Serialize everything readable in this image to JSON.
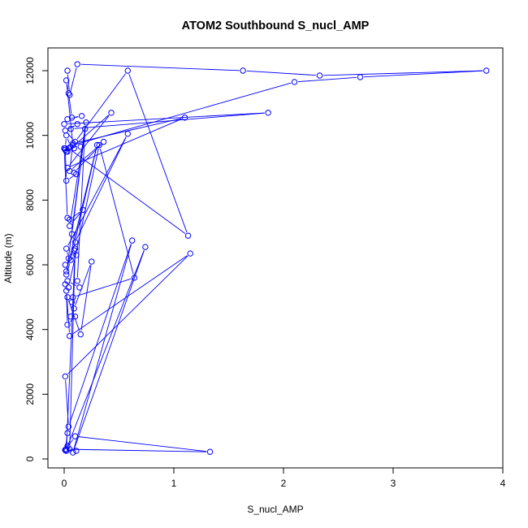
{
  "chart_data": {
    "type": "line",
    "title": "ATOM2 Southbound S_nucl_AMP",
    "xlabel": "S_nucl_AMP",
    "ylabel": "Altitude (m)",
    "xlim": [
      0,
      4
    ],
    "ylim": [
      0,
      12000
    ],
    "xticks": [
      0,
      1,
      2,
      3,
      4
    ],
    "yticks": [
      0,
      2000,
      4000,
      6000,
      8000,
      10000,
      12000
    ],
    "grid": false,
    "legend": "none",
    "series_color": "#0000ff",
    "marker": "open-circle",
    "series": [
      {
        "x": [
          0.03,
          0.05,
          0.12,
          1.63,
          2.33,
          3.85,
          2.7,
          2.1,
          0.08,
          0.02,
          0.04,
          0.07,
          0.16,
          0.03,
          0.0,
          1.86,
          0.06,
          0.12,
          0.01,
          0.1,
          0.58,
          1.13,
          0.04,
          0.02,
          0.01,
          0.02,
          0.06,
          0.15,
          0.09,
          0.03,
          0.43,
          0.03,
          1.1,
          0.08,
          0.05,
          0.36,
          0.09,
          0.11,
          0.02,
          0.01,
          0.0,
          0.03,
          0.05,
          0.17,
          0.05,
          0.2,
          0.07,
          0.1,
          0.58,
          0.02,
          0.04,
          0.09,
          0.11,
          0.01,
          0.02,
          0.3,
          0.06,
          0.02,
          0.19,
          0.12,
          0.14,
          0.03,
          0.01,
          0.04,
          0.32,
          0.64,
          0.08,
          0.07,
          0.03,
          0.15,
          0.25,
          0.09,
          0.06,
          0.1,
          0.03,
          0.02,
          0.05,
          1.15,
          0.01,
          0.04,
          0.62,
          0.08,
          0.74,
          0.02,
          1.33,
          0.1,
          0.01,
          0.03,
          0.01,
          0.02,
          0.1,
          0.05,
          0.03,
          0.01,
          0.11
        ],
        "y": [
          12000,
          11250,
          12200,
          12000,
          11850,
          12000,
          11800,
          11650,
          9700,
          11700,
          11300,
          10550,
          10600,
          10500,
          10350,
          10700,
          10200,
          10350,
          10150,
          9800,
          12000,
          6900,
          9600,
          9500,
          9600,
          10000,
          9650,
          9650,
          9600,
          9500,
          10700,
          9000,
          10550,
          9750,
          8900,
          9800,
          8850,
          8800,
          8600,
          9550,
          9600,
          7450,
          7400,
          7700,
          7200,
          10400,
          6950,
          6700,
          10050,
          6500,
          6200,
          6450,
          6300,
          6000,
          5800,
          9700,
          6150,
          5700,
          10200,
          5500,
          5300,
          5500,
          5400,
          5300,
          9700,
          5600,
          5000,
          4850,
          5000,
          3850,
          6100,
          4650,
          4400,
          4400,
          4150,
          5200,
          3800,
          6350,
          2550,
          1000,
          6750,
          200,
          6550,
          300,
          220,
          700,
          280,
          800,
          270,
          250,
          6500,
          300,
          400,
          280,
          250
        ]
      }
    ]
  }
}
